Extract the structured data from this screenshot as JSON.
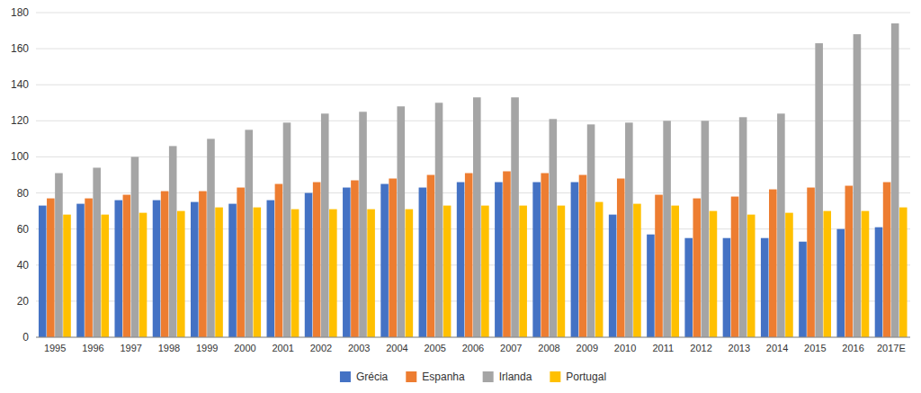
{
  "chart_data": {
    "type": "bar",
    "categories": [
      "1995",
      "1996",
      "1997",
      "1998",
      "1999",
      "2000",
      "2001",
      "2002",
      "2003",
      "2004",
      "2005",
      "2006",
      "2007",
      "2008",
      "2009",
      "2010",
      "2011",
      "2012",
      "2013",
      "2014",
      "2015",
      "2016",
      "2017E"
    ],
    "series": [
      {
        "name": "Grécia",
        "color": "#4472C4",
        "values": [
          73,
          74,
          76,
          76,
          75,
          74,
          76,
          80,
          83,
          85,
          83,
          86,
          86,
          86,
          86,
          68,
          57,
          55,
          55,
          55,
          53,
          60,
          61
        ]
      },
      {
        "name": "Espanha",
        "color": "#ED7D31",
        "values": [
          77,
          77,
          79,
          81,
          81,
          83,
          85,
          86,
          87,
          88,
          90,
          91,
          92,
          91,
          90,
          88,
          79,
          77,
          78,
          82,
          83,
          84,
          86
        ]
      },
      {
        "name": "Irlanda",
        "color": "#A5A5A5",
        "values": [
          91,
          94,
          100,
          106,
          110,
          115,
          119,
          124,
          125,
          128,
          130,
          133,
          133,
          121,
          118,
          119,
          120,
          120,
          122,
          124,
          163,
          168,
          174
        ]
      },
      {
        "name": "Portugal",
        "color": "#FFC000",
        "values": [
          68,
          68,
          69,
          70,
          72,
          72,
          71,
          71,
          71,
          71,
          73,
          73,
          73,
          73,
          75,
          74,
          73,
          70,
          68,
          69,
          70,
          70,
          72
        ]
      }
    ],
    "ylim": [
      0,
      180
    ],
    "yticks": [
      0,
      20,
      40,
      60,
      80,
      100,
      120,
      140,
      160,
      180
    ],
    "grid": true,
    "legend": "bottom"
  }
}
